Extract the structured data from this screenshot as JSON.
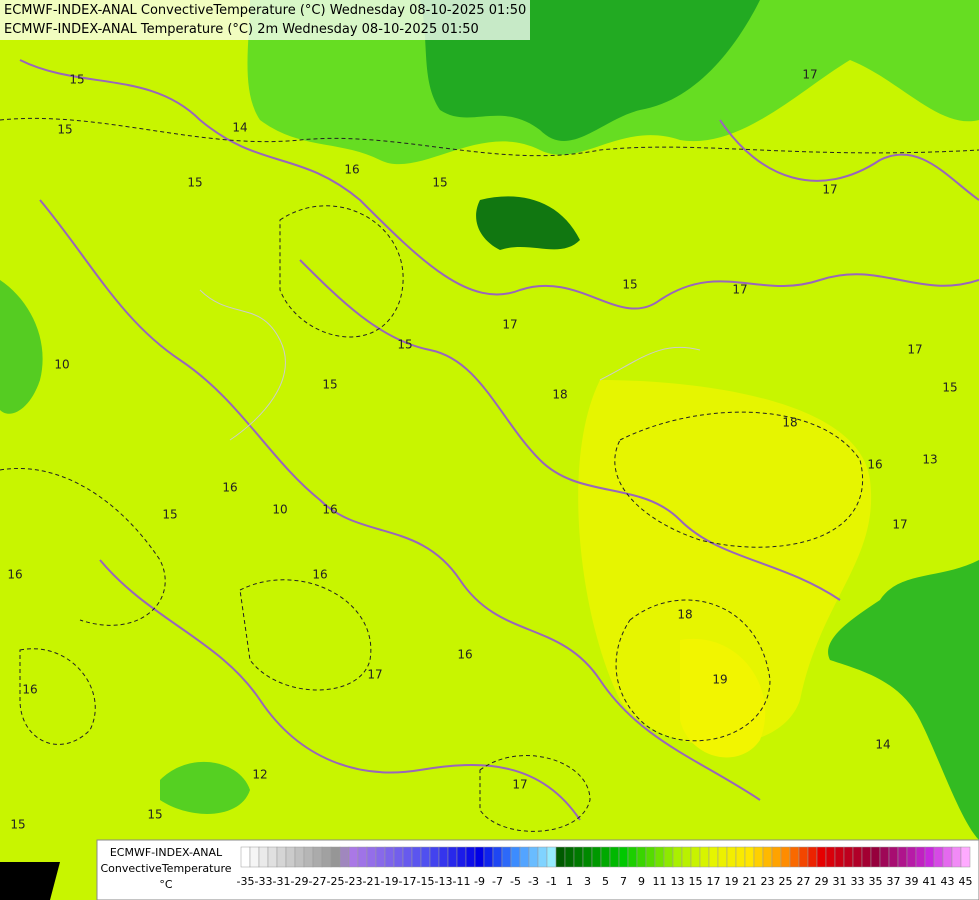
{
  "header": {
    "line1": "ECMWF-INDEX-ANAL ConvectiveTemperature (°C) Wednesday 08-10-2025 01:50",
    "line2": "ECMWF-INDEX-ANAL Temperature (°C) 2m Wednesday 08-10-2025 01:50"
  },
  "map": {
    "contour_labels": [
      "15",
      "15",
      "15",
      "15",
      "15",
      "15",
      "15",
      "15",
      "15",
      "15",
      "15",
      "16",
      "16",
      "16",
      "16",
      "16",
      "16",
      "16",
      "16",
      "17",
      "17",
      "17",
      "17",
      "17",
      "17",
      "17",
      "17",
      "18",
      "18",
      "18",
      "19",
      "14",
      "14",
      "10",
      "10",
      "13",
      "12"
    ]
  },
  "legend": {
    "model": "ECMWF-INDEX-ANAL",
    "variable": "ConvectiveTemperature",
    "unit": "°C",
    "ticks": [
      -35,
      -33,
      -31,
      -29,
      -27,
      -25,
      -23,
      -21,
      -19,
      -17,
      -15,
      -13,
      -11,
      -9,
      -7,
      -5,
      -3,
      -1,
      1,
      3,
      5,
      7,
      9,
      11,
      13,
      15,
      17,
      19,
      21,
      23,
      25,
      27,
      29,
      31,
      33,
      35,
      37,
      39,
      41,
      43,
      45
    ]
  }
}
